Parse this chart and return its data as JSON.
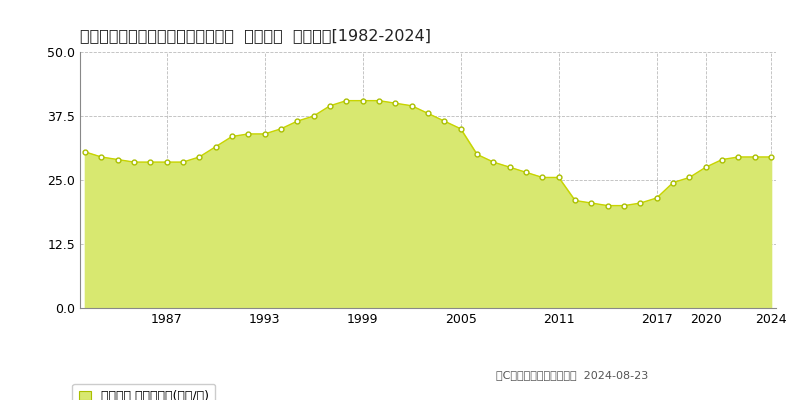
{
  "title": "山形県山形市荒楯町１丁目９番３外  地価公示  地価推移[1982-2024]",
  "years": [
    1982,
    1983,
    1984,
    1985,
    1986,
    1987,
    1988,
    1989,
    1990,
    1991,
    1992,
    1993,
    1994,
    1995,
    1996,
    1997,
    1998,
    1999,
    2000,
    2001,
    2002,
    2003,
    2004,
    2005,
    2006,
    2007,
    2008,
    2009,
    2010,
    2011,
    2012,
    2013,
    2014,
    2015,
    2016,
    2017,
    2018,
    2019,
    2020,
    2021,
    2022,
    2023,
    2024
  ],
  "values": [
    30.5,
    29.5,
    29.0,
    28.5,
    28.5,
    28.5,
    28.5,
    29.5,
    31.5,
    33.5,
    34.0,
    34.0,
    35.0,
    36.5,
    37.5,
    39.5,
    40.5,
    40.5,
    40.5,
    40.0,
    39.5,
    38.0,
    36.5,
    35.0,
    30.0,
    28.5,
    27.5,
    26.5,
    25.5,
    25.5,
    21.0,
    20.5,
    20.0,
    20.0,
    20.5,
    21.5,
    24.5,
    25.5,
    27.5,
    29.0,
    29.5,
    29.5,
    29.5
  ],
  "line_color": "#c8d400",
  "fill_color": "#d8e870",
  "fill_alpha": 1.0,
  "marker_color": "white",
  "marker_edge_color": "#aabf00",
  "bg_color": "#ffffff",
  "plot_bg_color": "#ffffff",
  "grid_color": "#bbbbbb",
  "ylim": [
    0,
    50
  ],
  "yticks": [
    0,
    12.5,
    25,
    37.5,
    50
  ],
  "xticks": [
    1987,
    1993,
    1999,
    2005,
    2011,
    2017,
    2020,
    2024
  ],
  "xlabel": "",
  "ylabel": "",
  "legend_label": "地価公示 平均坪単価(万円/坪)",
  "copyright_text": "（C）土地価格ドットコム  2024-08-23",
  "title_fontsize": 11.5,
  "tick_fontsize": 9,
  "legend_fontsize": 9
}
